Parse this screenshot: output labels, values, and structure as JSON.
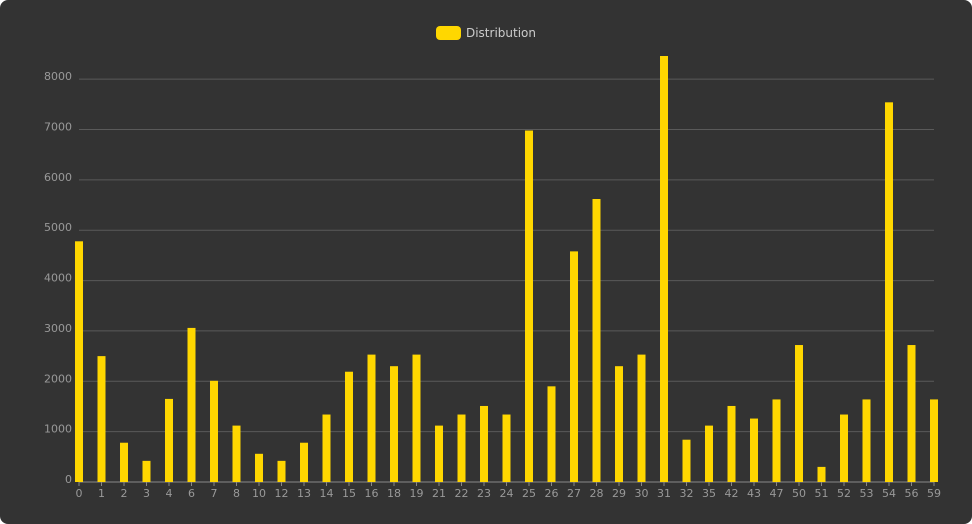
{
  "chart_data": {
    "type": "bar",
    "categories": [
      "0",
      "1",
      "2",
      "3",
      "4",
      "6",
      "7",
      "8",
      "10",
      "12",
      "13",
      "14",
      "15",
      "16",
      "18",
      "19",
      "21",
      "22",
      "23",
      "24",
      "25",
      "26",
      "27",
      "28",
      "29",
      "30",
      "31",
      "32",
      "35",
      "42",
      "43",
      "47",
      "50",
      "51",
      "52",
      "53",
      "54",
      "56",
      "59"
    ],
    "series": [
      {
        "name": "Distribution",
        "values": [
          4780,
          2500,
          780,
          420,
          1650,
          3060,
          2010,
          1120,
          560,
          420,
          780,
          1340,
          2190,
          2530,
          2300,
          2530,
          1120,
          1340,
          1510,
          1340,
          6980,
          1900,
          4580,
          5620,
          2300,
          2530,
          8460,
          840,
          1120,
          1510,
          1260,
          1640,
          2720,
          300,
          1340,
          1640,
          7540,
          2720,
          1640
        ]
      }
    ],
    "y_ticks": [
      "0",
      "1000",
      "2000",
      "3000",
      "4000",
      "5000",
      "6000",
      "7000",
      "8000"
    ],
    "ylim": [
      0,
      8460
    ],
    "grid": true,
    "legend": "top-center",
    "colors": {
      "bar": "#FFD700",
      "background": "#333333",
      "grid": "#5a5a5a",
      "tick_text": "#999999"
    }
  }
}
